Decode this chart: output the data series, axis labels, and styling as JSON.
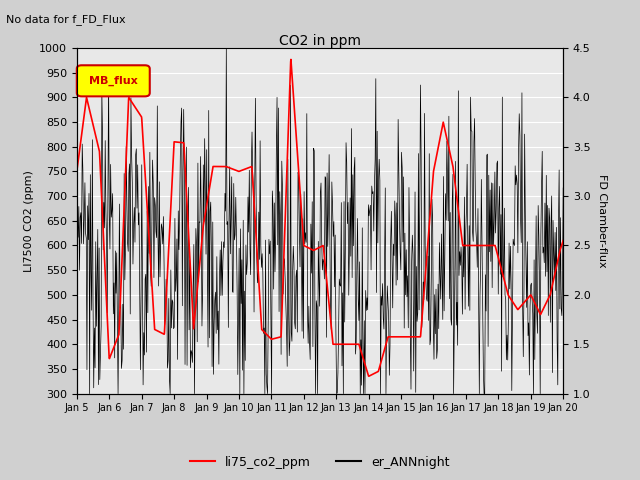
{
  "title": "CO2 in ppm",
  "top_left_text": "No data for f_FD_Flux",
  "ylabel_left": "LI7500 CO2 (ppm)",
  "ylabel_right": "FD Chamber-flux",
  "ylim_left": [
    300,
    1000
  ],
  "ylim_right": [
    1.0,
    4.5
  ],
  "yticks_left": [
    300,
    350,
    400,
    450,
    500,
    550,
    600,
    650,
    700,
    750,
    800,
    850,
    900,
    950,
    1000
  ],
  "yticks_right": [
    1.0,
    1.5,
    2.0,
    2.5,
    3.0,
    3.5,
    4.0,
    4.5
  ],
  "xtick_labels": [
    "Jan 5",
    "Jan 6",
    "Jan 7",
    "Jan 8",
    "Jan 9",
    "Jan 10",
    "Jan 11",
    "Jan 12",
    "Jan 13",
    "Jan 14",
    "Jan 15",
    "Jan 16",
    "Jan 17",
    "Jan 18",
    "Jan 19",
    "Jan 20"
  ],
  "legend_box_label": "MB_flux",
  "legend_box_color": "#ffff00",
  "legend_box_border": "#cc0000",
  "legend_entries": [
    "li75_co2_ppm",
    "er_ANNnight"
  ],
  "legend_colors": [
    "#ff0000",
    "#000000"
  ],
  "background_color": "#d0d0d0",
  "plot_bg_color": "#e8e8e8",
  "grid_color": "#ffffff",
  "red_line_color": "#ff0000",
  "black_line_color": "#000000",
  "red_x": [
    0,
    0.3,
    0.7,
    1.0,
    1.3,
    1.6,
    2.0,
    2.4,
    2.7,
    3.0,
    3.3,
    3.6,
    3.9,
    4.2,
    4.6,
    5.0,
    5.4,
    5.7,
    6.0,
    6.3,
    6.6,
    7.0,
    7.3,
    7.6,
    7.9,
    8.3,
    8.7,
    9.0,
    9.3,
    9.6,
    10.0,
    10.3,
    10.6,
    11.0,
    11.3,
    11.6,
    11.9,
    12.0,
    12.3,
    12.6,
    12.9,
    13.3,
    13.6,
    14.0,
    14.3,
    14.6,
    14.9,
    15.0
  ],
  "red_y": [
    750,
    900,
    790,
    370,
    420,
    900,
    860,
    430,
    420,
    810,
    808,
    430,
    640,
    760,
    760,
    750,
    760,
    430,
    410,
    415,
    980,
    600,
    590,
    600,
    400,
    400,
    400,
    335,
    345,
    415,
    415,
    415,
    415,
    750,
    850,
    760,
    600,
    600,
    600,
    600,
    600,
    500,
    470,
    500,
    460,
    500,
    590,
    610
  ]
}
